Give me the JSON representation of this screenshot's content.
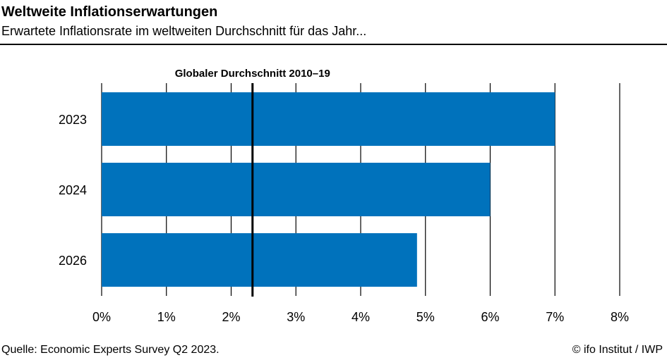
{
  "header": {
    "title": "Weltweite Inflationserwartungen",
    "subtitle": "Erwartete Inflationsrate im weltweiten Durchschnitt für das Jahr..."
  },
  "chart_data": {
    "type": "bar",
    "orientation": "horizontal",
    "categories": [
      "2023",
      "2024",
      "2026"
    ],
    "values": [
      7.0,
      6.0,
      4.87
    ],
    "xlim": [
      0,
      8
    ],
    "x_ticks": [
      "0%",
      "1%",
      "2%",
      "3%",
      "4%",
      "5%",
      "6%",
      "7%",
      "8%"
    ],
    "reference_line": {
      "label": "Globaler Durchschnitt 2010–19",
      "value": 2.33
    },
    "bar_color": "#0072bc",
    "grid": true
  },
  "footer": {
    "source": "Quelle: Economic Experts Survey Q2 2023.",
    "credit": "© ifo Institut / IWP"
  }
}
